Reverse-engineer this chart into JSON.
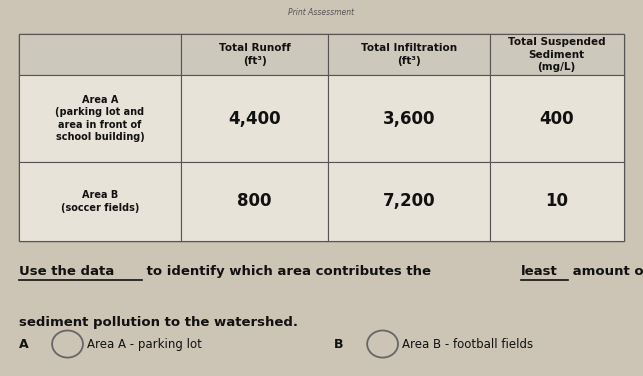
{
  "title_top": "Print Assessment",
  "col_headers": [
    "Total Runoff\n(ft³)",
    "Total Infiltration\n(ft³)",
    "Total Suspended\nSediment\n(mg/L)"
  ],
  "row_headers": [
    "Area A\n(parking lot and\narea in front of\nschool building)",
    "Area B\n(soccer fields)"
  ],
  "data": [
    [
      "4,400",
      "3,600",
      "400"
    ],
    [
      "800",
      "7,200",
      "10"
    ]
  ],
  "option_a_text": "Area A - parking lot",
  "option_b_text": "Area B - football fields",
  "bg_color": "#ccc5b5",
  "paper_color": "#e8e3d8",
  "header_bg": "#ccc8bc",
  "border_color": "#555555",
  "text_color": "#111111",
  "title_color": "#555555"
}
